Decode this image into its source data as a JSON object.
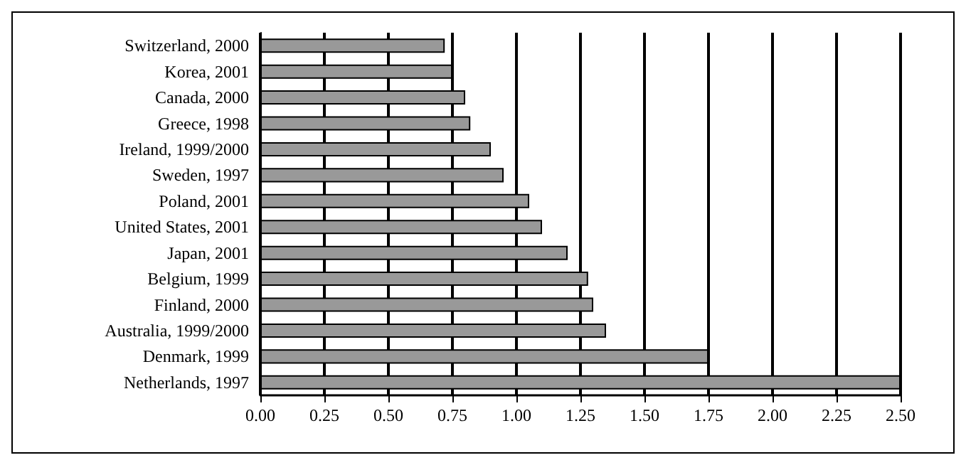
{
  "chart_data": {
    "type": "bar",
    "orientation": "horizontal",
    "categories": [
      "Switzerland, 2000",
      "Korea, 2001",
      "Canada, 2000",
      "Greece, 1998",
      "Ireland, 1999/2000",
      "Sweden, 1997",
      "Poland, 2001",
      "United States, 2001",
      "Japan, 2001",
      "Belgium, 1999",
      "Finland, 2000",
      "Australia, 1999/2000",
      "Denmark, 1999",
      "Netherlands, 1997"
    ],
    "values": [
      0.72,
      0.75,
      0.8,
      0.82,
      0.9,
      0.95,
      1.05,
      1.1,
      1.2,
      1.28,
      1.3,
      1.35,
      1.75,
      2.5
    ],
    "color": "#999999",
    "xlim": [
      0,
      2.5
    ],
    "xticks": [
      {
        "value": 0,
        "label": "0.00"
      },
      {
        "value": 0.25,
        "label": "0.25"
      },
      {
        "value": 0.5,
        "label": "0.50"
      },
      {
        "value": 0.75,
        "label": "0.75"
      },
      {
        "value": 1,
        "label": "1.00"
      },
      {
        "value": 1.25,
        "label": "1.25"
      },
      {
        "value": 1.5,
        "label": "1.50"
      },
      {
        "value": 1.75,
        "label": "1.75"
      },
      {
        "value": 2,
        "label": "2.00"
      },
      {
        "value": 2.25,
        "label": "2.25"
      },
      {
        "value": 2.5,
        "label": "2.50"
      }
    ],
    "grid": "x"
  }
}
